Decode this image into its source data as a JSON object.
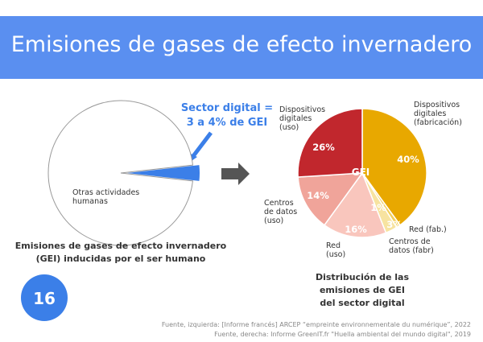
{
  "header": {
    "title": "Emisiones de gases de efecto invernadero"
  },
  "chart_data": [
    {
      "type": "pie",
      "categories": [
        "Otras actividades\nhumanas",
        null
      ],
      "values": [
        96.5,
        3.5
      ],
      "colors": [
        "#ffffff",
        "#3b7fe8"
      ],
      "annotations": [
        "Sector digital =",
        "3 a 4% de GEI"
      ],
      "caption": "Emisiones de gases de efecto invernadero\n(GEI) inducidas por el ser humano"
    },
    {
      "type": "pie",
      "center_label": "GEI",
      "categories": [
        "Dispositivos\ndigitales\n(fabricación)",
        "Red (fab.)",
        "Centros de\ndatos (fabr)",
        "Red\n(uso)",
        "Centros\nde datos\n(uso)",
        "Dispositivos\ndigitales\n(uso)"
      ],
      "values": [
        40,
        1,
        3,
        16,
        14,
        26
      ],
      "value_labels": [
        "40%",
        "1%",
        "3%",
        "16%",
        "14%",
        "26%"
      ],
      "colors": [
        "#e8a800",
        "#f3cf5a",
        "#f7e3a0",
        "#f9c6bd",
        "#f0a49a",
        "#c1272d"
      ],
      "caption": "Distribución de las emisiones de GEI\ndel sector digital"
    }
  ],
  "page_number": "16",
  "footer": {
    "sources": [
      "Fuente, izquierda: [Informe francés] ARCEP “empreinte environnementale du numérique”, 2022",
      "Fuente, derecha: Informe GreenIT.fr \"Huella ambiental del mundo digital\", 2019"
    ]
  }
}
